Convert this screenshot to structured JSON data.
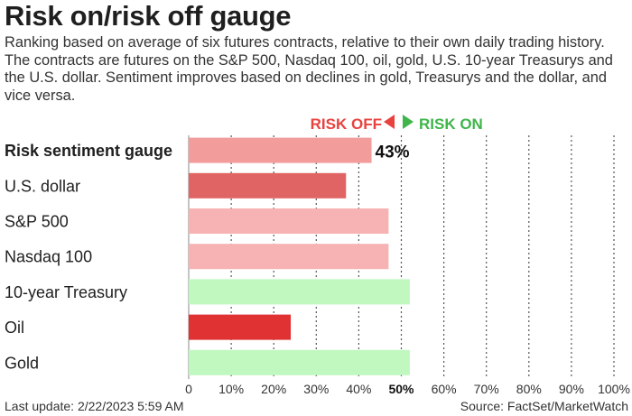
{
  "title": "Risk on/risk off gauge",
  "subtitle": "Ranking based on average of six futures contracts, relative to their own daily trading history. The contracts are futures on the S&P 500, Nasdaq 100, oil, gold, U.S. 10-year Treasurys and the U.S. dollar. Sentiment improves based on declines in gold, Treasurys and the dollar, and vice versa.",
  "legend": {
    "risk_off": "RISK OFF",
    "risk_on": "RISK ON",
    "risk_off_color": "#e8423f",
    "risk_on_color": "#3fb54a"
  },
  "footer": {
    "last_update": "Last update: 2/22/2023 5:59 AM",
    "source": "Source: FactSet/MarketWatch"
  },
  "chart_data": {
    "type": "bar",
    "orientation": "horizontal",
    "categories": [
      "Risk sentiment gauge",
      "U.S. dollar",
      "S&P 500",
      "Nasdaq 100",
      "10-year Treasury",
      "Oil",
      "Gold"
    ],
    "values": [
      43,
      37,
      47,
      47,
      52,
      24,
      52
    ],
    "colors": [
      "#f29c9c",
      "#e06464",
      "#f7b3b3",
      "#f7b3b3",
      "#c0f8c0",
      "#e03232",
      "#c0f8c0"
    ],
    "value_labels": [
      "43%",
      "",
      "",
      "",
      "",
      "",
      ""
    ],
    "xlim": [
      0,
      100
    ],
    "x_ticks": [
      0,
      10,
      20,
      30,
      40,
      50,
      60,
      70,
      80,
      90,
      100
    ],
    "x_tick_labels": [
      "0",
      "10%",
      "20%",
      "30%",
      "40%",
      "50%",
      "60%",
      "70%",
      "80%",
      "90%",
      "100%"
    ],
    "highlight_tick": 50,
    "grid": "vertical dotted",
    "title": "",
    "xlabel": "",
    "ylabel": ""
  }
}
